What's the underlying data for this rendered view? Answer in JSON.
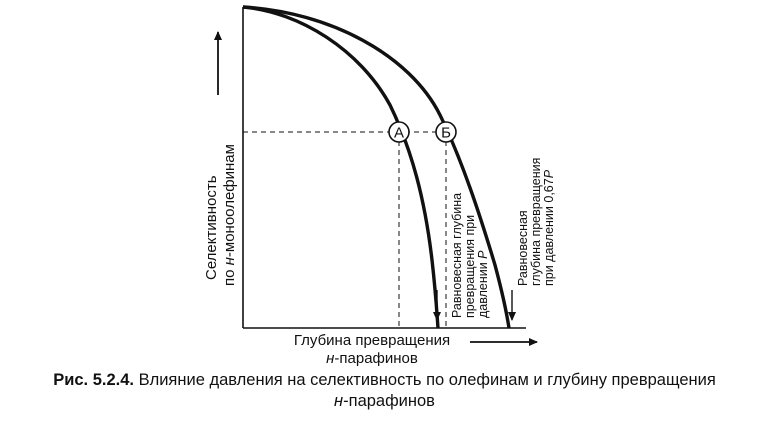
{
  "figure": {
    "y_axis_label_line1": "Селективность",
    "y_axis_label_line2_italic": "н",
    "y_axis_label_line2_rest": "-моноолефинам",
    "y_axis_label_line2_prefix": "по ",
    "x_axis_label_line1": "Глубина превращения",
    "x_axis_label_line2_italic": "н",
    "x_axis_label_line2_rest": "-парафинов",
    "point_a": "А",
    "point_b": "Б",
    "annotation_p": {
      "line1": "Равновесная глубина",
      "line2": "превращения при",
      "line3_prefix": "давлении ",
      "line3_italic": "Р"
    },
    "annotation_067p": {
      "line1": "Равновесная",
      "line2": "глубина превращения",
      "line3_prefix": "при давлении 0,67",
      "line3_italic": "Р"
    }
  },
  "caption": {
    "label": "Рис. 5.2.4.",
    "text_line1": " Влияние давления на селективность по олефинам и глубину превращения",
    "text_line2_italic": "н",
    "text_line2_rest": "-парафинов"
  }
}
